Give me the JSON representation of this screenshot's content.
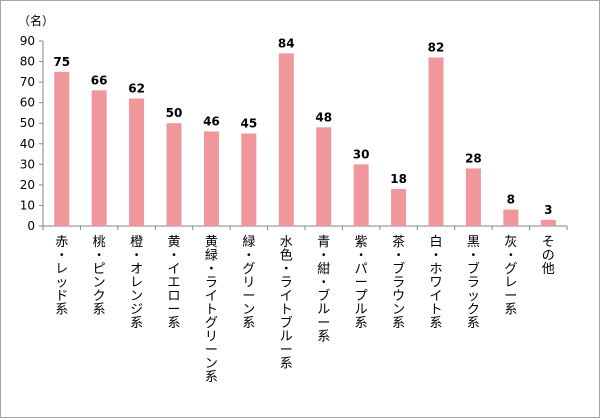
{
  "chart_data": {
    "type": "bar",
    "unit_label": "（名）",
    "ylim": [
      0,
      90
    ],
    "yticks": [
      0,
      10,
      20,
      30,
      40,
      50,
      60,
      70,
      80,
      90
    ],
    "grid": false,
    "bar_color": "#f0979b",
    "categories": [
      "赤・レッド系",
      "桃・ピンク系",
      "橙・オレンジ系",
      "黄・イエロー系",
      "黄緑・ライトグリーン系",
      "緑・グリーン系",
      "水色・ライトブルー系",
      "青・紺・ブルー系",
      "紫・パープル系",
      "茶・ブラウン系",
      "白・ホワイト系",
      "黒・ブラック系",
      "灰・グレー系",
      "その他"
    ],
    "values": [
      75,
      66,
      62,
      50,
      46,
      45,
      84,
      48,
      30,
      18,
      82,
      28,
      8,
      3
    ]
  }
}
